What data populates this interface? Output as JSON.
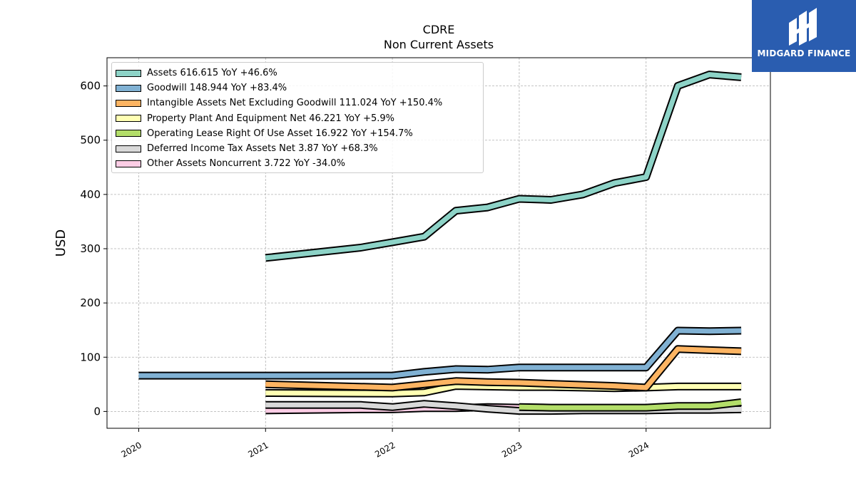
{
  "chart_data": {
    "type": "line",
    "title": "CDRE",
    "subtitle": "Non Current  Assets",
    "xlabel": "",
    "ylabel": "USD",
    "xlim": [
      2019.75,
      2024.98
    ],
    "ylim": [
      -31,
      652
    ],
    "x_ticks": [
      "2020",
      "2021",
      "2022",
      "2023",
      "2024"
    ],
    "y_ticks": [
      0,
      100,
      200,
      300,
      400,
      500,
      600
    ],
    "grid": true,
    "legend_position": "top-left",
    "series": [
      {
        "name": "Assets",
        "legend": "Assets  616.615 YoY +46.6%",
        "color": "#8dd3c7",
        "x": [
          2021.0,
          2021.75,
          2022.0,
          2022.25,
          2022.5,
          2022.75,
          2023.0,
          2023.25,
          2023.5,
          2023.75,
          2024.0,
          2024.25,
          2024.5,
          2024.75
        ],
        "y": [
          283,
          302,
          312,
          322,
          370,
          376,
          392,
          390,
          400,
          421,
          432,
          600,
          621,
          616
        ]
      },
      {
        "name": "Goodwill",
        "legend": "Goodwill  148.944 YoY +83.4%",
        "color": "#80b1d3",
        "x": [
          2020.0,
          2022.0,
          2022.25,
          2022.5,
          2022.75,
          2023.0,
          2023.25,
          2023.5,
          2023.75,
          2024.0,
          2024.25,
          2024.5,
          2024.75
        ],
        "y": [
          66,
          66,
          73,
          78,
          77,
          81,
          81,
          81,
          81,
          81,
          149,
          148,
          149
        ]
      },
      {
        "name": "Intangible Assets Net Excluding Goodwill",
        "legend": "Intangible Assets Net Excluding Goodwill  111.024 YoY +150.4%",
        "color": "#fdb462",
        "x": [
          2021.0,
          2022.0,
          2022.25,
          2022.5,
          2022.75,
          2023.0,
          2023.25,
          2023.5,
          2023.75,
          2024.0,
          2024.25,
          2024.5,
          2024.75
        ],
        "y": [
          50,
          44,
          50,
          56,
          54,
          53,
          51,
          49,
          47,
          44,
          115,
          113,
          111
        ]
      },
      {
        "name": "Property Plant And Equipment Net",
        "legend": "Property Plant And Equipment Net  46.221 YoY +5.9%",
        "color": "#ffffb3",
        "x": [
          2021.0,
          2022.0,
          2022.25,
          2022.5,
          2022.75,
          2023.0,
          2023.25,
          2023.5,
          2023.75,
          2024.0,
          2024.25,
          2024.5,
          2024.75
        ],
        "y": [
          34,
          33,
          35,
          47,
          46,
          45,
          45,
          44,
          43,
          44,
          46,
          46,
          46
        ]
      },
      {
        "name": "Operating Lease Right Of Use Asset",
        "legend": "Operating Lease Right Of Use Asset  16.922 YoY +154.7%",
        "color": "#b3de69",
        "x": [
          2023.0,
          2023.25,
          2023.5,
          2023.75,
          2024.0,
          2024.25,
          2024.5,
          2024.75
        ],
        "y": [
          8,
          7,
          7,
          7,
          7,
          10,
          10,
          17
        ]
      },
      {
        "name": "Deferred Income Tax Assets Net",
        "legend": "Deferred Income Tax Assets Net  3.87 YoY +68.3%",
        "color": "#d9d9d9",
        "x": [
          2021.0,
          2021.75,
          2022.0,
          2022.25,
          2022.5,
          2022.75,
          2023.0,
          2023.25,
          2023.5,
          2023.75,
          2024.0,
          2024.25,
          2024.5,
          2024.75
        ],
        "y": [
          12,
          12,
          8,
          14,
          10,
          5,
          1,
          1,
          2,
          2,
          2,
          3,
          3,
          4
        ]
      },
      {
        "name": "Other Assets Noncurrent",
        "legend": "Other Assets Noncurrent  3.722 YoY -34.0%",
        "color": "#fccde5",
        "x": [
          2021.0,
          2021.75,
          2022.0,
          2022.25,
          2022.5,
          2022.75,
          2023.0,
          2023.25,
          2023.5,
          2023.75,
          2024.0,
          2024.25,
          2024.5,
          2024.75
        ],
        "y": [
          2,
          4,
          4,
          6,
          6,
          8,
          7,
          6,
          6,
          6,
          5,
          5,
          5,
          4
        ]
      }
    ]
  },
  "logo": {
    "text": "MIDGARD FINANCE",
    "color": "#2a5db0"
  }
}
